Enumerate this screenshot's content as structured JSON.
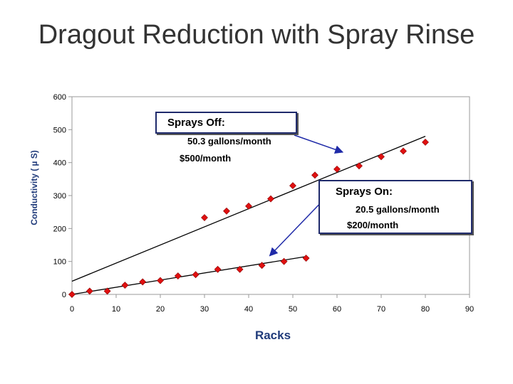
{
  "slide": {
    "title": "Dragout Reduction with Spray Rinse"
  },
  "callouts": {
    "sprays_off": {
      "heading": "Sprays Off:",
      "rate": "50.3 gallons/month",
      "cost": "$500/month"
    },
    "sprays_on": {
      "heading": "Sprays On:",
      "rate": "20.5 gallons/month",
      "cost": "$200/month"
    }
  },
  "colors": {
    "marker": "#e01010",
    "marker_outline": "#8a0000",
    "trendline": "#000000",
    "arrow": "#1f2aa8",
    "axis_title": "#1f3a7a"
  },
  "chart_data": {
    "type": "scatter",
    "xlabel": "Racks",
    "ylabel": "Conductivity ( µ S)",
    "xlim": [
      0,
      90
    ],
    "ylim": [
      0,
      600
    ],
    "xticks": [
      0,
      10,
      20,
      30,
      40,
      50,
      60,
      70,
      80,
      90
    ],
    "yticks": [
      0,
      100,
      200,
      300,
      400,
      500,
      600
    ],
    "grid": false,
    "series": [
      {
        "marker": "diamond",
        "points": [
          [
            0,
            0
          ],
          [
            4,
            10
          ],
          [
            8,
            10
          ],
          [
            12,
            28
          ],
          [
            16,
            38
          ],
          [
            20,
            42
          ],
          [
            24,
            56
          ],
          [
            28,
            60
          ],
          [
            33,
            76
          ],
          [
            38,
            76
          ],
          [
            43,
            88
          ],
          [
            48,
            100
          ],
          [
            53,
            110
          ]
        ],
        "trend": [
          [
            0,
            0
          ],
          [
            53,
            115
          ]
        ]
      },
      {
        "marker": "diamond",
        "points": [
          [
            30,
            233
          ],
          [
            35,
            253
          ],
          [
            40,
            268
          ],
          [
            45,
            290
          ],
          [
            50,
            330
          ],
          [
            55,
            362
          ],
          [
            60,
            380
          ],
          [
            65,
            390
          ],
          [
            70,
            418
          ],
          [
            75,
            435
          ],
          [
            80,
            462
          ]
        ],
        "trend": [
          [
            0,
            40
          ],
          [
            80,
            480
          ]
        ]
      }
    ]
  }
}
